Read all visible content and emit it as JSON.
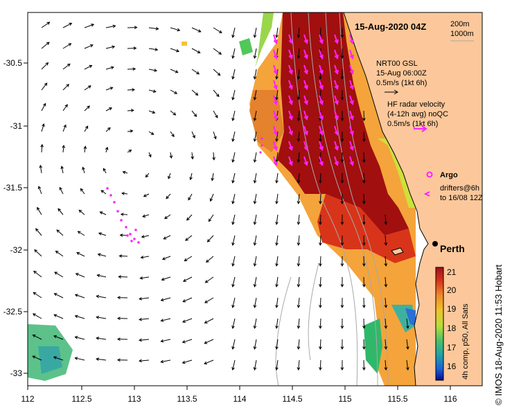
{
  "map": {
    "title": "15-Aug-2020 04Z",
    "lon_labels": [
      "112",
      "112.5",
      "113",
      "113.5",
      "114",
      "114.5",
      "115",
      "115.5",
      "116"
    ],
    "lat_labels": [
      "-30.5",
      "-31",
      "-31.5",
      "-32",
      "-32.5",
      "-33"
    ],
    "isobaths": [
      "200m",
      "1000m"
    ],
    "legend": {
      "nrt_title": "NRT00 GSL",
      "nrt_time": "15-Aug 06:00Z",
      "nrt_scale": "0.5m/s (1kt 6h)",
      "hf_title": "HF radar velocity",
      "hf_sub": "(4-12h avg) noQC",
      "hf_scale": "0.5m/s (1kt 6h)",
      "argo": "Argo",
      "drifters_1": "drifters@6h",
      "drifters_2": "to 16/08 12Z"
    },
    "city": "Perth",
    "colorbar": {
      "ticks": [
        "21",
        "20",
        "19",
        "18",
        "17",
        "16"
      ],
      "title": "4h comp, p50, All Sats"
    },
    "credit": "© IMOS 18-Aug-2020 11:53 Hobart",
    "colors": {
      "land": "#fcc89b",
      "vector": "#000000",
      "hf_vector": "#ff22ff",
      "argo": "#ff22ff"
    }
  }
}
